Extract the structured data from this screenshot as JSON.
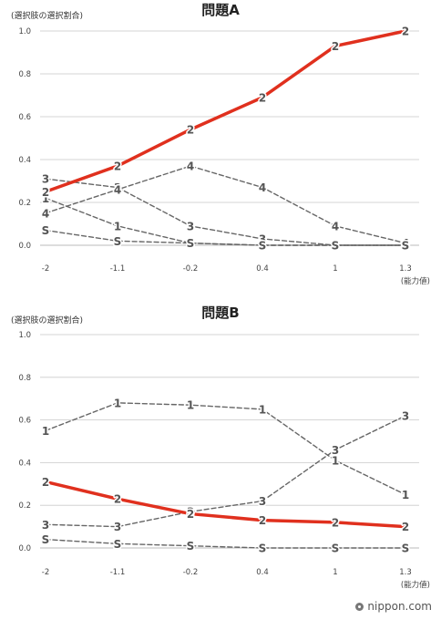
{
  "colors": {
    "highlight": "#e0301e",
    "series": "#666666",
    "grid": "#c9c9c9"
  },
  "footer": {
    "brand": "nippon",
    "domain": ".com",
    "icon": "nippon-dot-icon"
  },
  "chart_data": [
    {
      "type": "line",
      "title": "問題A",
      "ylabel": "(選択肢の選択割合)",
      "xlabel": "(能力値)",
      "x": [
        "-2",
        "-1.1",
        "-0.2",
        "0.4",
        "1",
        "1.3"
      ],
      "ylim": [
        0,
        1.0
      ],
      "yticks": [
        "0.0",
        "0.2",
        "0.4",
        "0.6",
        "0.8",
        "1.0"
      ],
      "grid": true,
      "series": [
        {
          "name": "2",
          "highlight": true,
          "values": [
            0.25,
            0.37,
            0.54,
            0.69,
            0.93,
            1.0
          ]
        },
        {
          "name": "1",
          "highlight": false,
          "values": [
            0.22,
            0.09,
            0.01,
            0.0,
            0.0,
            0.0
          ]
        },
        {
          "name": "3",
          "highlight": false,
          "values": [
            0.31,
            0.27,
            0.09,
            0.03,
            0.0,
            0.0
          ]
        },
        {
          "name": "4",
          "highlight": false,
          "values": [
            0.15,
            0.26,
            0.37,
            0.27,
            0.09,
            0.01
          ]
        },
        {
          "name": "S",
          "highlight": false,
          "values": [
            0.07,
            0.02,
            0.01,
            0.0,
            0.0,
            0.0
          ]
        }
      ]
    },
    {
      "type": "line",
      "title": "問題B",
      "ylabel": "(選択肢の選択割合)",
      "xlabel": "(能力値)",
      "x": [
        "-2",
        "-1.1",
        "-0.2",
        "0.4",
        "1",
        "1.3"
      ],
      "ylim": [
        0,
        1.0
      ],
      "yticks": [
        "0.0",
        "0.2",
        "0.4",
        "0.6",
        "0.8",
        "1.0"
      ],
      "grid": true,
      "series": [
        {
          "name": "2",
          "highlight": true,
          "values": [
            0.31,
            0.23,
            0.16,
            0.13,
            0.12,
            0.1
          ]
        },
        {
          "name": "1",
          "highlight": false,
          "values": [
            0.55,
            0.68,
            0.67,
            0.65,
            0.41,
            0.25
          ]
        },
        {
          "name": "3",
          "highlight": false,
          "values": [
            0.11,
            0.1,
            0.17,
            0.22,
            0.46,
            0.62
          ]
        },
        {
          "name": "S",
          "highlight": false,
          "values": [
            0.04,
            0.02,
            0.01,
            0.0,
            0.0,
            0.0
          ]
        }
      ]
    }
  ]
}
